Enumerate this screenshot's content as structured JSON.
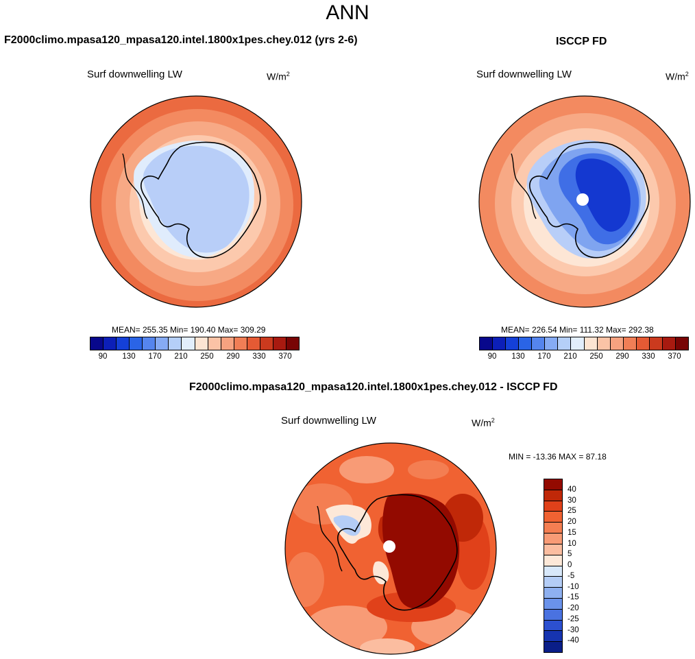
{
  "title": "ANN",
  "panels": [
    {
      "id": "model",
      "heading": "F2000climo.mpasa120_mpasa120.intel.1800x1pes.chey.012 (yrs 2-6)",
      "variable": "Surf downwelling LW",
      "units_base": "W/m",
      "units_exp": "2",
      "stats": "MEAN= 255.35  Min= 190.40  Max= 309.29"
    },
    {
      "id": "obs",
      "heading": "ISCCP FD",
      "variable": "Surf downwelling LW",
      "units_base": "W/m",
      "units_exp": "2",
      "stats": "MEAN= 226.54  Min= 111.32  Max= 292.38"
    },
    {
      "id": "diff",
      "heading": "F2000climo.mpasa120_mpasa120.intel.1800x1pes.chey.012 - ISCCP FD",
      "variable": "Surf downwelling LW",
      "units_base": "W/m",
      "units_exp": "2",
      "stats": "MIN = -13.36 MAX =  87.18"
    }
  ],
  "abs_colorbar": {
    "colors": [
      "#08088c",
      "#0c1fb8",
      "#1440d8",
      "#2a64e6",
      "#5585ee",
      "#86abf4",
      "#b5cff8",
      "#e2eefc",
      "#fde4d2",
      "#fbc3a6",
      "#f6a280",
      "#f07e56",
      "#e55a34",
      "#cb3a1e",
      "#a81a10",
      "#780404"
    ],
    "labels": [
      "90",
      "130",
      "170",
      "210",
      "250",
      "290",
      "330",
      "370"
    ]
  },
  "diff_colorbar": {
    "colors": [
      "#930a00",
      "#c02808",
      "#e0411a",
      "#f06232",
      "#f47e52",
      "#f89b76",
      "#fbbda0",
      "#fde8d8",
      "#d8e8fa",
      "#b4cdf6",
      "#8eb0f0",
      "#6a92ea",
      "#4a72e0",
      "#2c50d0",
      "#1634b0",
      "#0a1e88"
    ],
    "labels": [
      "40",
      "30",
      "25",
      "20",
      "15",
      "10",
      "5",
      "0",
      "-5",
      "-10",
      "-15",
      "-20",
      "-25",
      "-30",
      "-40"
    ]
  },
  "chart_data": [
    {
      "type": "map",
      "projection": "south polar stereographic",
      "title": "Surf downwelling LW",
      "units": "W/m2",
      "mean": 255.35,
      "min": 190.4,
      "max": 309.29,
      "levels": [
        90,
        110,
        130,
        150,
        170,
        190,
        210,
        230,
        250,
        270,
        290,
        310,
        330,
        350,
        370
      ]
    },
    {
      "type": "map",
      "projection": "south polar stereographic",
      "title": "Surf downwelling LW",
      "units": "W/m2",
      "mean": 226.54,
      "min": 111.32,
      "max": 292.38,
      "levels": [
        90,
        110,
        130,
        150,
        170,
        190,
        210,
        230,
        250,
        270,
        290,
        310,
        330,
        350,
        370
      ]
    },
    {
      "type": "map",
      "projection": "south polar stereographic",
      "title": "Surf downwelling LW",
      "units": "W/m2",
      "min": -13.36,
      "max": 87.18,
      "levels": [
        -40,
        -30,
        -25,
        -20,
        -15,
        -10,
        -5,
        0,
        5,
        10,
        15,
        20,
        25,
        30,
        40
      ]
    }
  ]
}
